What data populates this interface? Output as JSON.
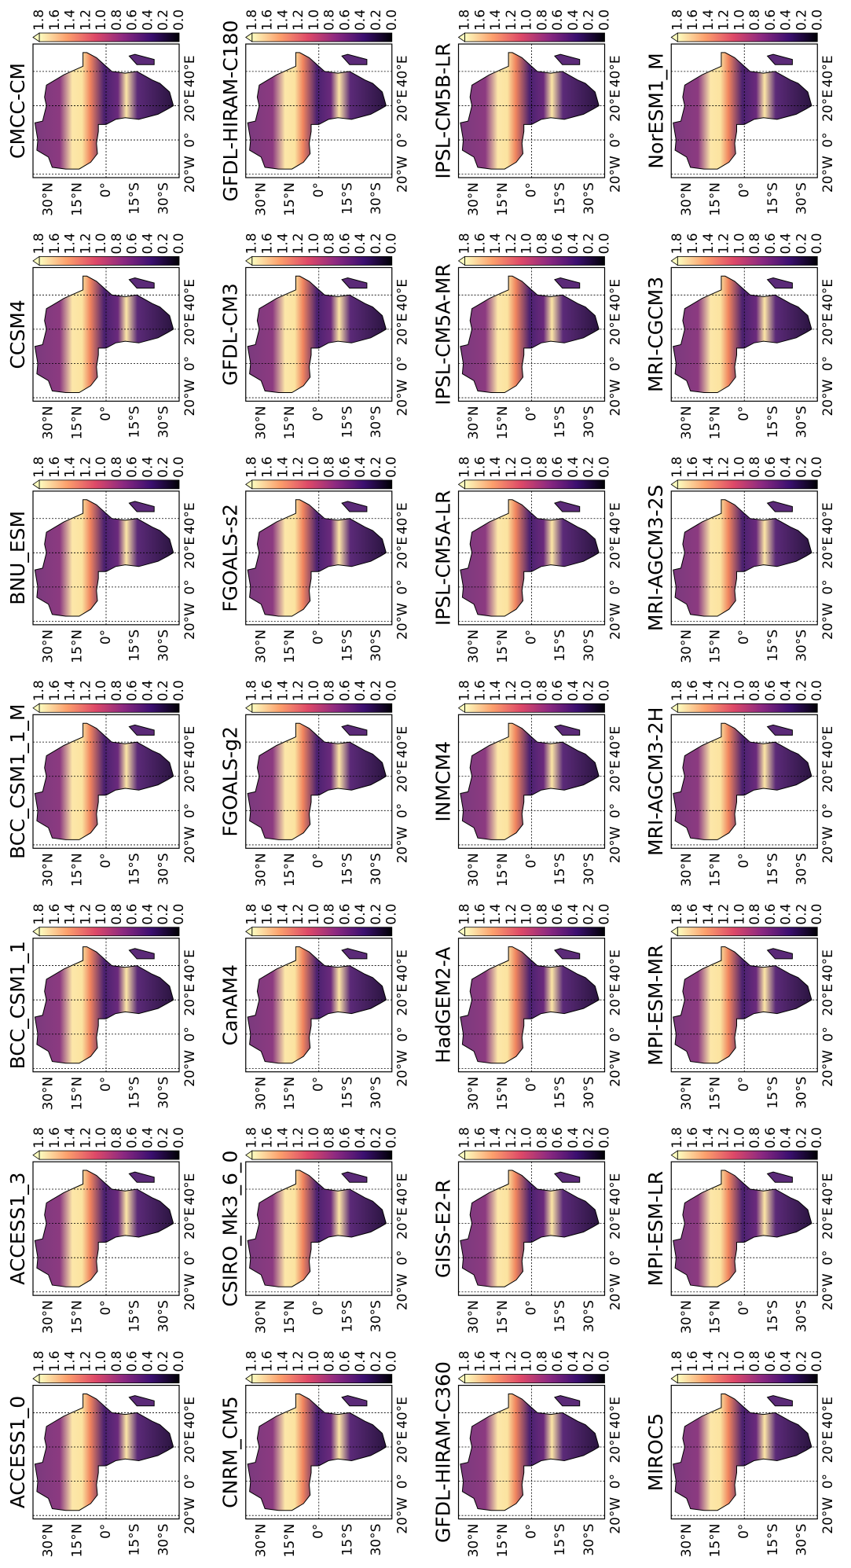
{
  "colorbar": {
    "ticks": [
      "1.8",
      "1.6",
      "1.4",
      "1.2",
      "1.0",
      "0.8",
      "0.6",
      "0.4",
      "0.2",
      "0.0"
    ]
  },
  "lat_ticks": [
    "30°N",
    "15°N",
    "0°",
    "15°S",
    "30°S"
  ],
  "lon_ticks": [
    "20°W",
    "0°",
    "20°E",
    "40°E"
  ],
  "panels": [
    {
      "title": "ACCESS1_0"
    },
    {
      "title": "ACCESS1_3"
    },
    {
      "title": "BCC_CSM1_1"
    },
    {
      "title": "BCC_CSM1_1_M"
    },
    {
      "title": "BNU_ESM"
    },
    {
      "title": "CCSM4"
    },
    {
      "title": "CMCC-CM"
    },
    {
      "title": "CNRM_CM5"
    },
    {
      "title": "CSIRO_Mk3_6_0"
    },
    {
      "title": "CanAM4"
    },
    {
      "title": "FGOALS-g2"
    },
    {
      "title": "FGOALS-s2"
    },
    {
      "title": "GFDL-CM3"
    },
    {
      "title": "GFDL-HIRAM-C180"
    },
    {
      "title": "GFDL-HIRAM-C360"
    },
    {
      "title": "GISS-E2-R"
    },
    {
      "title": "HadGEM2-A"
    },
    {
      "title": "INMCM4"
    },
    {
      "title": "IPSL-CM5A-LR"
    },
    {
      "title": "IPSL-CM5A-MR"
    },
    {
      "title": "IPSL-CM5B-LR"
    },
    {
      "title": "MIROC5"
    },
    {
      "title": "MPI-ESM-LR"
    },
    {
      "title": "MPI-ESM-MR"
    },
    {
      "title": "MRI-AGCM3-2H"
    },
    {
      "title": "MRI-AGCM3-2S"
    },
    {
      "title": "MRI-CGCM3"
    },
    {
      "title": "NorESM1_M"
    }
  ]
}
